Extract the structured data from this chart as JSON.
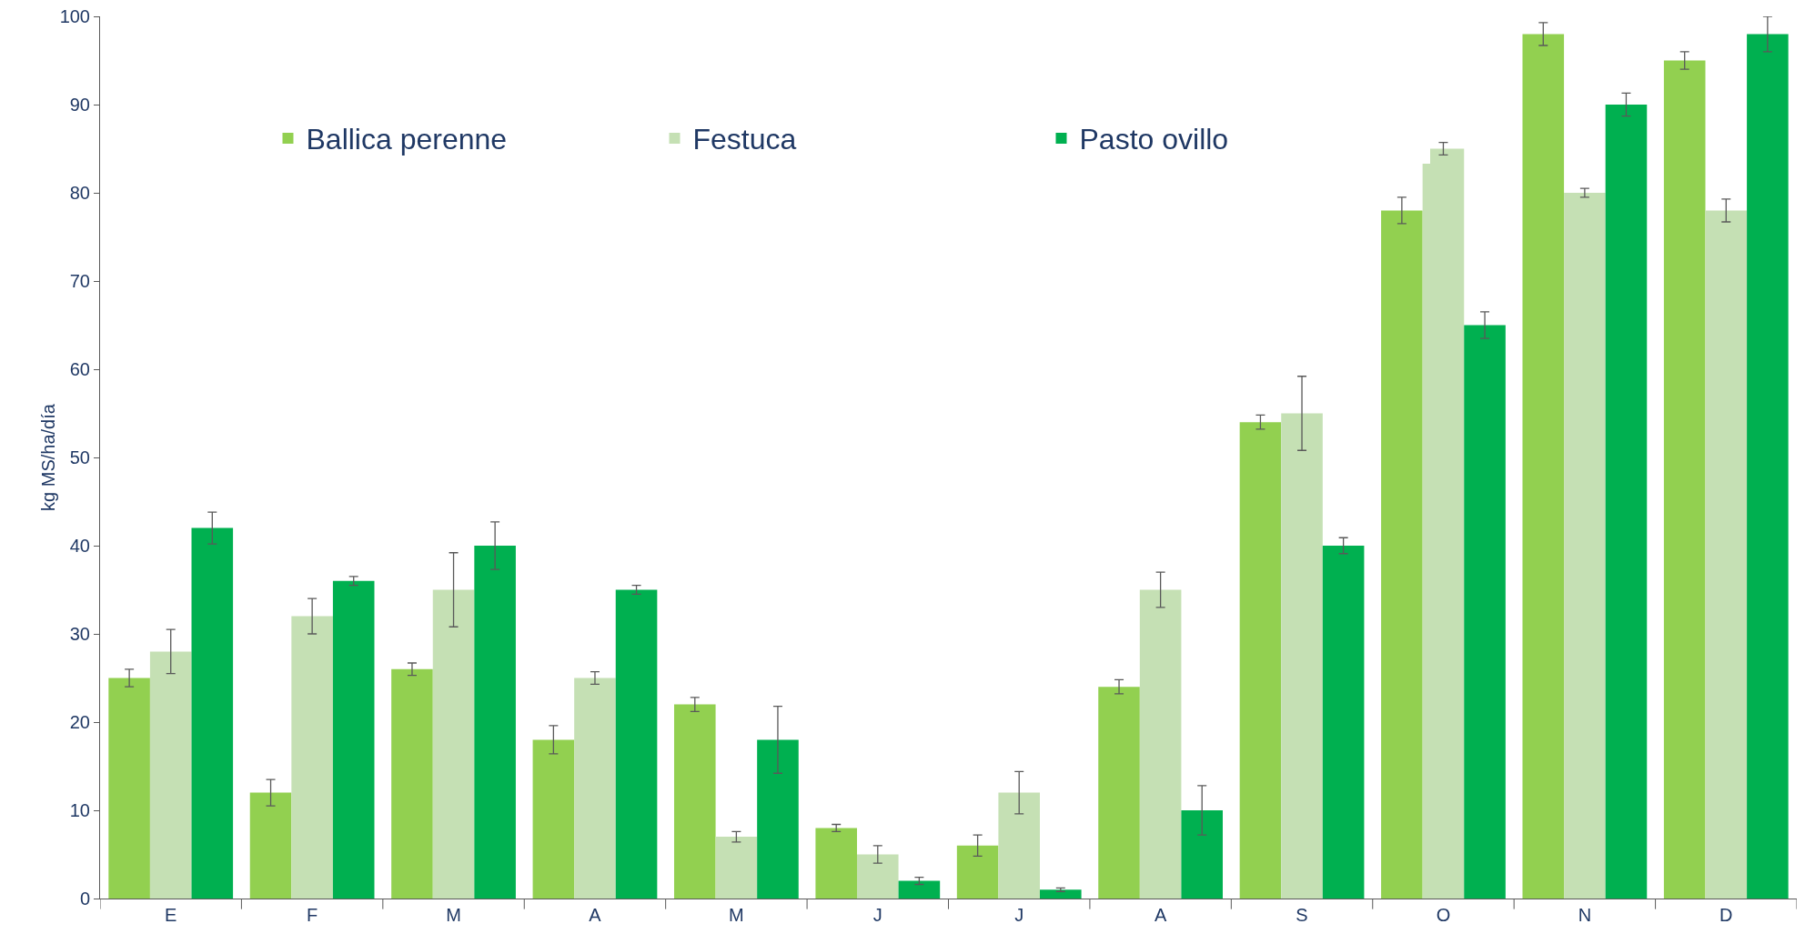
{
  "chart_data": {
    "type": "bar",
    "ylabel": "kg MS/ha/día",
    "categories": [
      "E",
      "F",
      "M",
      "A",
      "M",
      "J",
      "J",
      "A",
      "S",
      "O",
      "N",
      "D"
    ],
    "series": [
      {
        "name": "Ballica perenne",
        "color": "#92d050",
        "values": [
          25,
          12,
          26,
          18,
          22,
          8,
          6,
          24,
          54,
          78,
          98,
          95
        ],
        "errors": [
          1,
          1.5,
          0.7,
          1.6,
          0.8,
          0.4,
          1.2,
          0.8,
          0.8,
          1.5,
          1.3,
          1
        ]
      },
      {
        "name": "Festuca",
        "color": "#c5e0b4",
        "values": [
          28,
          32,
          35,
          25,
          7,
          5,
          12,
          35,
          55,
          85,
          80,
          78
        ],
        "errors": [
          2.5,
          2,
          4.2,
          0.7,
          0.6,
          1,
          2.4,
          2,
          4.2,
          0.7,
          0.5,
          1.3
        ]
      },
      {
        "name": "Pasto ovillo",
        "color": "#00b050",
        "values": [
          42,
          36,
          40,
          35,
          18,
          2,
          1,
          10,
          40,
          65,
          90,
          98
        ],
        "errors": [
          1.8,
          0.5,
          2.7,
          0.5,
          3.8,
          0.4,
          0.2,
          2.8,
          0.9,
          1.5,
          1.3,
          2
        ]
      }
    ],
    "ylim": [
      0,
      100
    ],
    "yticks": [
      0,
      10,
      20,
      30,
      40,
      50,
      60,
      70,
      80,
      90,
      100
    ],
    "grid": false,
    "legend": "top left"
  }
}
